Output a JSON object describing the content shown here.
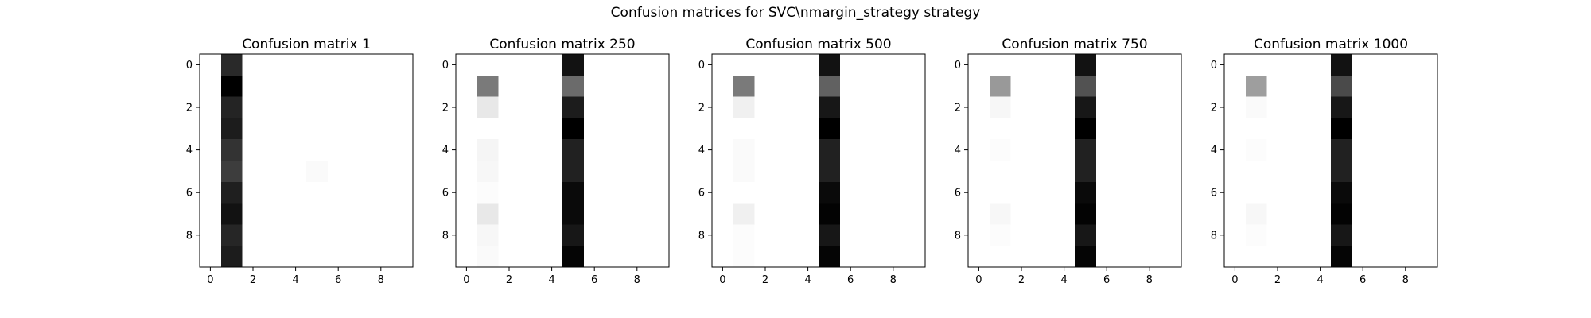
{
  "figure": {
    "title": "Confusion matrices for SVC\\nmargin_strategy strategy"
  },
  "chart_data": [
    {
      "type": "heatmap",
      "title": "Confusion matrix 1",
      "xlabel": "",
      "ylabel": "",
      "colormap": "gray_r",
      "xticks": [
        0,
        2,
        4,
        6,
        8
      ],
      "yticks": [
        0,
        2,
        4,
        6,
        8
      ],
      "xlim": [
        -0.5,
        9.5
      ],
      "ylim": [
        9.5,
        -0.5
      ],
      "matrix": [
        [
          0,
          84,
          0,
          0,
          0,
          0,
          0,
          0,
          0,
          0
        ],
        [
          0,
          100,
          0,
          0,
          0,
          0,
          0,
          0,
          0,
          0
        ],
        [
          0,
          86,
          0,
          0,
          0,
          0,
          0,
          0,
          0,
          0
        ],
        [
          0,
          89,
          0,
          0,
          0,
          0,
          0,
          0,
          0,
          0
        ],
        [
          0,
          80,
          0,
          0,
          0,
          0,
          0,
          0,
          0,
          0
        ],
        [
          0,
          76,
          0,
          0,
          0,
          2,
          0,
          0,
          0,
          0
        ],
        [
          0,
          88,
          0,
          0,
          0,
          0,
          0,
          0,
          0,
          0
        ],
        [
          0,
          93,
          0,
          0,
          0,
          0,
          0,
          0,
          0,
          0
        ],
        [
          0,
          85,
          0,
          0,
          0,
          0,
          0,
          0,
          0,
          0
        ],
        [
          0,
          89,
          0,
          0,
          0,
          0,
          0,
          0,
          0,
          0
        ]
      ]
    },
    {
      "type": "heatmap",
      "title": "Confusion matrix 250",
      "xlabel": "",
      "ylabel": "",
      "colormap": "gray_r",
      "xticks": [
        0,
        2,
        4,
        6,
        8
      ],
      "yticks": [
        0,
        2,
        4,
        6,
        8
      ],
      "xlim": [
        -0.5,
        9.5
      ],
      "ylim": [
        9.5,
        -0.5
      ],
      "matrix": [
        [
          0,
          0,
          0,
          0,
          0,
          93,
          0,
          0,
          0,
          0
        ],
        [
          0,
          52,
          0,
          0,
          0,
          58,
          0,
          0,
          0,
          0
        ],
        [
          0,
          9,
          0,
          0,
          0,
          89,
          0,
          0,
          0,
          0
        ],
        [
          0,
          0,
          0,
          0,
          0,
          100,
          0,
          0,
          0,
          0
        ],
        [
          0,
          4,
          0,
          0,
          0,
          87,
          0,
          0,
          0,
          0
        ],
        [
          0,
          3,
          0,
          0,
          0,
          87,
          0,
          0,
          0,
          0
        ],
        [
          0,
          1,
          0,
          0,
          0,
          96,
          0,
          0,
          0,
          0
        ],
        [
          0,
          9,
          0,
          0,
          0,
          96,
          0,
          0,
          0,
          0
        ],
        [
          0,
          3,
          0,
          0,
          0,
          91,
          0,
          0,
          0,
          0
        ],
        [
          0,
          2,
          0,
          0,
          0,
          98,
          0,
          0,
          0,
          0
        ]
      ]
    },
    {
      "type": "heatmap",
      "title": "Confusion matrix 500",
      "xlabel": "",
      "ylabel": "",
      "colormap": "gray_r",
      "xticks": [
        0,
        2,
        4,
        6,
        8
      ],
      "yticks": [
        0,
        2,
        4,
        6,
        8
      ],
      "xlim": [
        -0.5,
        9.5
      ],
      "ylim": [
        9.5,
        -0.5
      ],
      "matrix": [
        [
          0,
          0,
          0,
          0,
          0,
          93,
          0,
          0,
          0,
          0
        ],
        [
          0,
          52,
          0,
          0,
          0,
          62,
          0,
          0,
          0,
          0
        ],
        [
          0,
          6,
          0,
          0,
          0,
          91,
          0,
          0,
          0,
          0
        ],
        [
          0,
          0,
          0,
          0,
          0,
          100,
          0,
          0,
          0,
          0
        ],
        [
          0,
          2,
          0,
          0,
          0,
          87,
          0,
          0,
          0,
          0
        ],
        [
          0,
          2,
          0,
          0,
          0,
          87,
          0,
          0,
          0,
          0
        ],
        [
          0,
          0,
          0,
          0,
          0,
          96,
          0,
          0,
          0,
          0
        ],
        [
          0,
          6,
          0,
          0,
          0,
          99,
          0,
          0,
          0,
          0
        ],
        [
          0,
          1,
          0,
          0,
          0,
          91,
          0,
          0,
          0,
          0
        ],
        [
          0,
          1,
          0,
          0,
          0,
          98,
          0,
          0,
          0,
          0
        ]
      ]
    },
    {
      "type": "heatmap",
      "title": "Confusion matrix 750",
      "xlabel": "",
      "ylabel": "",
      "colormap": "gray_r",
      "xticks": [
        0,
        2,
        4,
        6,
        8
      ],
      "yticks": [
        0,
        2,
        4,
        6,
        8
      ],
      "xlim": [
        -0.5,
        9.5
      ],
      "ylim": [
        9.5,
        -0.5
      ],
      "matrix": [
        [
          0,
          0,
          0,
          0,
          0,
          93,
          0,
          0,
          0,
          0
        ],
        [
          0,
          40,
          0,
          0,
          0,
          68,
          0,
          0,
          0,
          0
        ],
        [
          0,
          3,
          0,
          0,
          0,
          91,
          0,
          0,
          0,
          0
        ],
        [
          0,
          0,
          0,
          0,
          0,
          100,
          0,
          0,
          0,
          0
        ],
        [
          0,
          1,
          0,
          0,
          0,
          87,
          0,
          0,
          0,
          0
        ],
        [
          0,
          0,
          0,
          0,
          0,
          87,
          0,
          0,
          0,
          0
        ],
        [
          0,
          0,
          0,
          0,
          0,
          96,
          0,
          0,
          0,
          0
        ],
        [
          0,
          3,
          0,
          0,
          0,
          99,
          0,
          0,
          0,
          0
        ],
        [
          0,
          1,
          0,
          0,
          0,
          91,
          0,
          0,
          0,
          0
        ],
        [
          0,
          0,
          0,
          0,
          0,
          98,
          0,
          0,
          0,
          0
        ]
      ]
    },
    {
      "type": "heatmap",
      "title": "Confusion matrix 1000",
      "xlabel": "",
      "ylabel": "",
      "colormap": "gray_r",
      "xticks": [
        0,
        2,
        4,
        6,
        8
      ],
      "yticks": [
        0,
        2,
        4,
        6,
        8
      ],
      "xlim": [
        -0.5,
        9.5
      ],
      "ylim": [
        9.5,
        -0.5
      ],
      "matrix": [
        [
          0,
          0,
          0,
          0,
          0,
          93,
          0,
          0,
          0,
          0
        ],
        [
          0,
          38,
          0,
          0,
          0,
          71,
          0,
          0,
          0,
          0
        ],
        [
          0,
          2,
          0,
          0,
          0,
          91,
          0,
          0,
          0,
          0
        ],
        [
          0,
          0,
          0,
          0,
          0,
          100,
          0,
          0,
          0,
          0
        ],
        [
          0,
          1,
          0,
          0,
          0,
          87,
          0,
          0,
          0,
          0
        ],
        [
          0,
          0,
          0,
          0,
          0,
          87,
          0,
          0,
          0,
          0
        ],
        [
          0,
          0,
          0,
          0,
          0,
          96,
          0,
          0,
          0,
          0
        ],
        [
          0,
          3,
          0,
          0,
          0,
          99,
          0,
          0,
          0,
          0
        ],
        [
          0,
          1,
          0,
          0,
          0,
          91,
          0,
          0,
          0,
          0
        ],
        [
          0,
          0,
          0,
          0,
          0,
          98,
          0,
          0,
          0,
          0
        ]
      ]
    }
  ]
}
